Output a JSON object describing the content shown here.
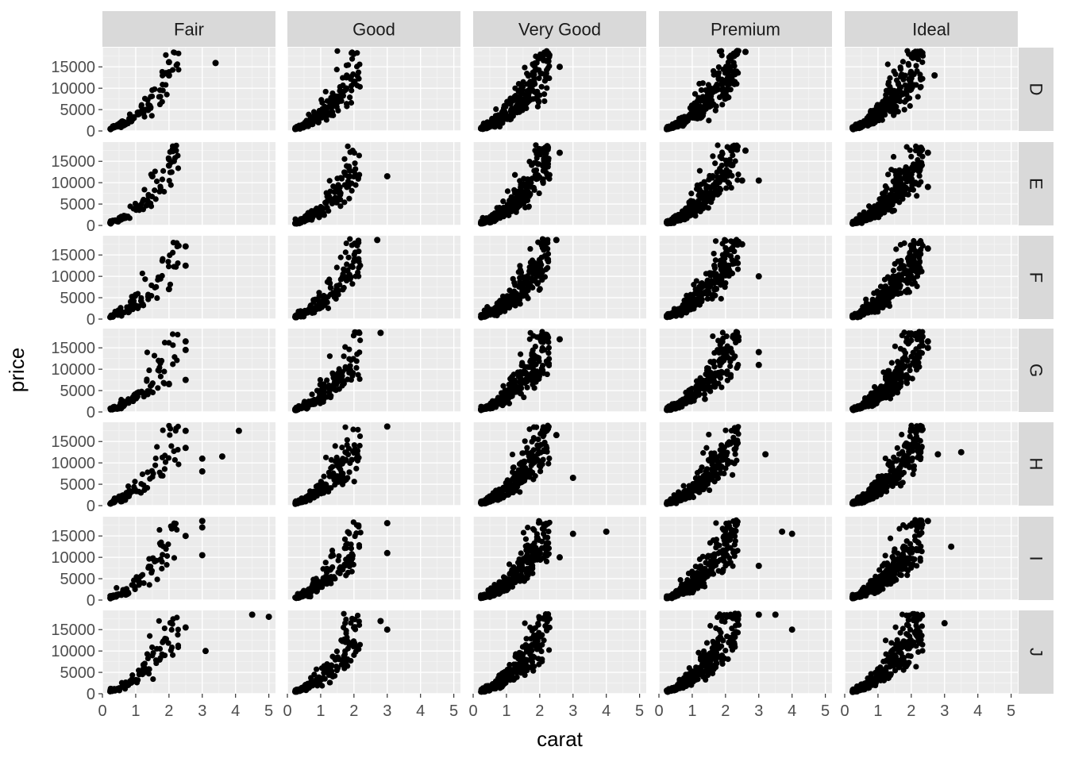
{
  "chart_data": {
    "type": "scatter",
    "title": "",
    "xlabel": "carat",
    "ylabel": "price",
    "xlim": [
      0,
      5.2
    ],
    "ylim": [
      0,
      19500
    ],
    "x_ticks": [
      0,
      1,
      2,
      3,
      4,
      5
    ],
    "x_tick_labels": [
      "0",
      "1",
      "2",
      "3",
      "4",
      "5"
    ],
    "y_ticks": [
      0,
      5000,
      10000,
      15000
    ],
    "y_tick_labels": [
      "0",
      "5000",
      "10000",
      "15000"
    ],
    "grid": true,
    "facet_cols": [
      "Fair",
      "Good",
      "Very Good",
      "Premium",
      "Ideal"
    ],
    "facet_rows": [
      "D",
      "E",
      "F",
      "G",
      "H",
      "I",
      "J"
    ],
    "colors": {
      "panel_bg": "#ebebeb",
      "grid_major": "#ffffff",
      "strip_bg": "#d9d9d9",
      "point": "#000000",
      "tick_text": "#4d4d4d"
    },
    "outliers": [
      {
        "col": "Fair",
        "row": "D",
        "points": [
          [
            3.4,
            15900
          ],
          [
            2.0,
            16100
          ],
          [
            2.0,
            13000
          ]
        ]
      },
      {
        "col": "Fair",
        "row": "E",
        "points": [
          [
            2.0,
            15500
          ],
          [
            2.0,
            14000
          ],
          [
            1.5,
            11500
          ]
        ]
      },
      {
        "col": "Fair",
        "row": "F",
        "points": [
          [
            2.5,
            17000
          ],
          [
            2.5,
            12500
          ],
          [
            2.0,
            7000
          ]
        ]
      },
      {
        "col": "Fair",
        "row": "G",
        "points": [
          [
            2.5,
            16500
          ],
          [
            2.5,
            14500
          ],
          [
            2.5,
            7500
          ],
          [
            2.0,
            6500
          ]
        ]
      },
      {
        "col": "Fair",
        "row": "H",
        "points": [
          [
            4.1,
            17500
          ],
          [
            3.6,
            11500
          ],
          [
            3.0,
            11000
          ],
          [
            3.0,
            8000
          ],
          [
            2.5,
            17500
          ],
          [
            2.5,
            13500
          ]
        ]
      },
      {
        "col": "Fair",
        "row": "I",
        "points": [
          [
            3.0,
            18500
          ],
          [
            3.0,
            17000
          ],
          [
            3.0,
            10500
          ],
          [
            2.5,
            15000
          ]
        ]
      },
      {
        "col": "Fair",
        "row": "J",
        "points": [
          [
            4.5,
            18500
          ],
          [
            5.0,
            18000
          ],
          [
            3.1,
            10000
          ],
          [
            2.5,
            15500
          ]
        ]
      },
      {
        "col": "Good",
        "row": "E",
        "points": [
          [
            3.0,
            11500
          ]
        ]
      },
      {
        "col": "Good",
        "row": "F",
        "points": [
          [
            2.7,
            18500
          ]
        ]
      },
      {
        "col": "Good",
        "row": "G",
        "points": [
          [
            2.8,
            18500
          ]
        ]
      },
      {
        "col": "Good",
        "row": "H",
        "points": [
          [
            3.0,
            18500
          ]
        ]
      },
      {
        "col": "Good",
        "row": "I",
        "points": [
          [
            3.0,
            18000
          ],
          [
            3.0,
            11000
          ]
        ]
      },
      {
        "col": "Good",
        "row": "J",
        "points": [
          [
            3.0,
            15000
          ],
          [
            2.8,
            17000
          ]
        ]
      },
      {
        "col": "Very Good",
        "row": "D",
        "points": [
          [
            2.6,
            15000
          ]
        ]
      },
      {
        "col": "Very Good",
        "row": "E",
        "points": [
          [
            2.6,
            17000
          ]
        ]
      },
      {
        "col": "Very Good",
        "row": "F",
        "points": [
          [
            2.5,
            18500
          ]
        ]
      },
      {
        "col": "Very Good",
        "row": "G",
        "points": [
          [
            2.6,
            17000
          ]
        ]
      },
      {
        "col": "Very Good",
        "row": "H",
        "points": [
          [
            3.0,
            6500
          ],
          [
            2.5,
            16500
          ]
        ]
      },
      {
        "col": "Very Good",
        "row": "I",
        "points": [
          [
            4.0,
            16000
          ],
          [
            3.0,
            15500
          ],
          [
            2.6,
            10000
          ]
        ]
      },
      {
        "col": "Premium",
        "row": "D",
        "points": [
          [
            2.6,
            18500
          ]
        ]
      },
      {
        "col": "Premium",
        "row": "E",
        "points": [
          [
            3.0,
            10500
          ],
          [
            2.6,
            17500
          ],
          [
            2.5,
            10500
          ]
        ]
      },
      {
        "col": "Premium",
        "row": "F",
        "points": [
          [
            3.0,
            10000
          ],
          [
            2.5,
            17500
          ]
        ]
      },
      {
        "col": "Premium",
        "row": "G",
        "points": [
          [
            3.0,
            14000
          ],
          [
            3.0,
            11000
          ]
        ]
      },
      {
        "col": "Premium",
        "row": "H",
        "points": [
          [
            3.2,
            12000
          ]
        ]
      },
      {
        "col": "Premium",
        "row": "I",
        "points": [
          [
            4.0,
            15500
          ],
          [
            3.7,
            16000
          ],
          [
            3.0,
            8000
          ]
        ]
      },
      {
        "col": "Premium",
        "row": "J",
        "points": [
          [
            3.5,
            18500
          ],
          [
            3.0,
            18500
          ],
          [
            4.0,
            15000
          ]
        ]
      },
      {
        "col": "Ideal",
        "row": "D",
        "points": [
          [
            2.7,
            13000
          ]
        ]
      },
      {
        "col": "Ideal",
        "row": "E",
        "points": [
          [
            2.5,
            17000
          ],
          [
            2.5,
            9000
          ]
        ]
      },
      {
        "col": "Ideal",
        "row": "F",
        "points": [
          [
            2.5,
            16500
          ]
        ]
      },
      {
        "col": "Ideal",
        "row": "G",
        "points": [
          [
            2.5,
            16500
          ],
          [
            2.5,
            15000
          ]
        ]
      },
      {
        "col": "Ideal",
        "row": "H",
        "points": [
          [
            3.5,
            12500
          ],
          [
            2.8,
            12000
          ]
        ]
      },
      {
        "col": "Ideal",
        "row": "I",
        "points": [
          [
            3.2,
            12500
          ],
          [
            2.5,
            18500
          ]
        ]
      },
      {
        "col": "Ideal",
        "row": "J",
        "points": [
          [
            3.0,
            16500
          ]
        ]
      }
    ]
  }
}
